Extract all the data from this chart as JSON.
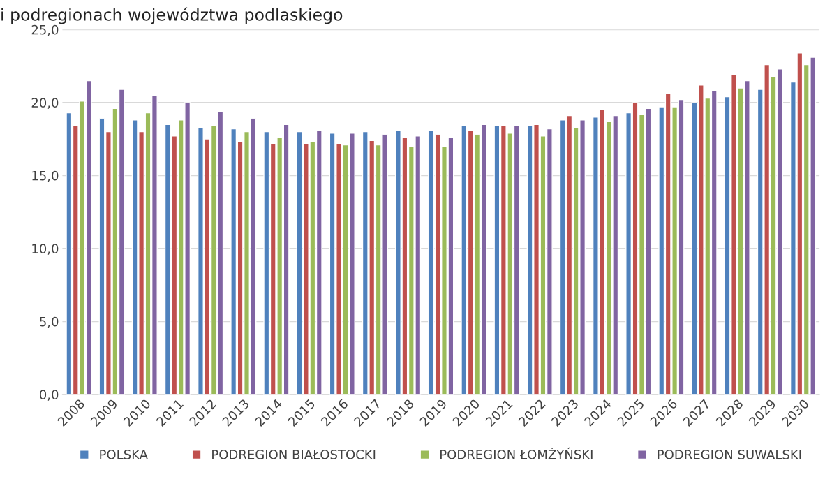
{
  "chart_data": {
    "type": "bar",
    "title": "i podregionach województwa podlaskiego",
    "categories": [
      "2008",
      "2009",
      "2010",
      "2011",
      "2012",
      "2013",
      "2014",
      "2015",
      "2016",
      "2017",
      "2018",
      "2019",
      "2020",
      "2021",
      "2022",
      "2023",
      "2024",
      "2025",
      "2026",
      "2027",
      "2028",
      "2029",
      "2030"
    ],
    "series": [
      {
        "name": "POLSKA",
        "color": "#4f81bd",
        "values": [
          19.3,
          18.9,
          18.8,
          18.5,
          18.3,
          18.2,
          18.0,
          18.0,
          17.9,
          18.0,
          18.1,
          18.1,
          18.4,
          18.4,
          18.4,
          18.8,
          19.0,
          19.3,
          19.7,
          20.0,
          20.4,
          20.9,
          21.4
        ]
      },
      {
        "name": "PODREGION BIAŁOSTOCKI",
        "color": "#c0504d",
        "values": [
          18.4,
          18.0,
          18.0,
          17.7,
          17.5,
          17.3,
          17.2,
          17.2,
          17.2,
          17.4,
          17.6,
          17.8,
          18.1,
          18.4,
          18.5,
          19.1,
          19.5,
          20.0,
          20.6,
          21.2,
          21.9,
          22.6,
          23.4
        ]
      },
      {
        "name": "PODREGION ŁOMŻYŃSKI",
        "color": "#9bbb59",
        "values": [
          20.1,
          19.6,
          19.3,
          18.8,
          18.4,
          18.0,
          17.6,
          17.3,
          17.1,
          17.1,
          17.0,
          17.0,
          17.8,
          17.9,
          17.7,
          18.3,
          18.7,
          19.2,
          19.7,
          20.3,
          21.0,
          21.8,
          22.6
        ]
      },
      {
        "name": "PODREGION SUWALSKI",
        "color": "#8064a2",
        "values": [
          21.5,
          20.9,
          20.5,
          20.0,
          19.4,
          18.9,
          18.5,
          18.1,
          17.9,
          17.8,
          17.7,
          17.6,
          18.5,
          18.4,
          18.2,
          18.8,
          19.1,
          19.6,
          20.2,
          20.8,
          21.5,
          22.3,
          23.1
        ]
      }
    ],
    "ylim": [
      0,
      25
    ],
    "yticks": [
      {
        "value": 0,
        "label": "0,0"
      },
      {
        "value": 5,
        "label": "5,0"
      },
      {
        "value": 10,
        "label": "10,0"
      },
      {
        "value": 15,
        "label": "15,0"
      },
      {
        "value": 20,
        "label": "20,0"
      },
      {
        "value": 25,
        "label": "25,0"
      }
    ],
    "grid": "y",
    "legend": "bottom"
  }
}
